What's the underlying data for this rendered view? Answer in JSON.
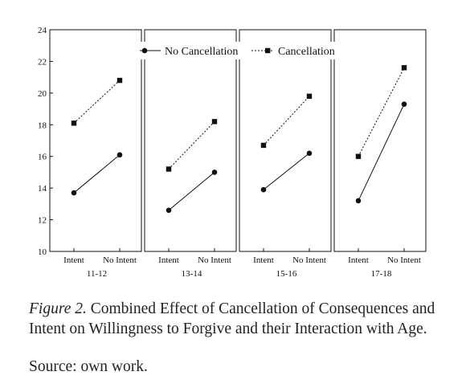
{
  "chart_data": {
    "type": "line",
    "ylim": [
      10,
      24
    ],
    "yticks": [
      "10",
      "12",
      "14",
      "16",
      "18",
      "20",
      "22",
      "24"
    ],
    "x": [
      "Intent",
      "No Intent"
    ],
    "legend": {
      "placement": "top",
      "entries": [
        {
          "label": "No Cancellation",
          "marker": "circle",
          "style": "solid"
        },
        {
          "label": "Cancellation",
          "marker": "square",
          "style": "dashed"
        }
      ]
    },
    "panels": [
      {
        "label": "11-12",
        "series": [
          {
            "name": "No Cancellation",
            "values": [
              13.7,
              16.1
            ]
          },
          {
            "name": "Cancellation",
            "values": [
              18.1,
              20.8
            ]
          }
        ]
      },
      {
        "label": "13-14",
        "series": [
          {
            "name": "No Cancellation",
            "values": [
              12.6,
              15.0
            ]
          },
          {
            "name": "Cancellation",
            "values": [
              15.2,
              18.2
            ]
          }
        ]
      },
      {
        "label": "15-16",
        "series": [
          {
            "name": "No Cancellation",
            "values": [
              13.9,
              16.2
            ]
          },
          {
            "name": "Cancellation",
            "values": [
              16.7,
              19.8
            ]
          }
        ]
      },
      {
        "label": "17-18",
        "series": [
          {
            "name": "No Cancellation",
            "values": [
              13.2,
              19.3
            ]
          },
          {
            "name": "Cancellation",
            "values": [
              16.0,
              21.6
            ]
          }
        ]
      }
    ]
  },
  "caption": {
    "figure_label": "Figure 2.",
    "text": "Combined Effect of Cancellation of Consequences and Intent on Willingness to Forgive and their Interaction with Age."
  },
  "source": "Source: own work."
}
